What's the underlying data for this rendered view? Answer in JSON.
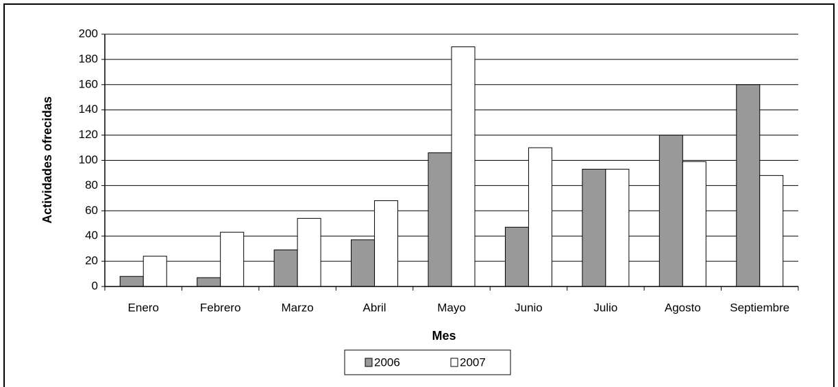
{
  "chart_data": {
    "type": "bar",
    "y_label": "Actividades ofrecidas",
    "x_label": "Mes",
    "categories": [
      "Enero",
      "Febrero",
      "Marzo",
      "Abril",
      "Mayo",
      "Junio",
      "Julio",
      "Agosto",
      "Septiembre"
    ],
    "series": [
      {
        "name": "2006",
        "color": "#999999",
        "values": [
          8,
          7,
          29,
          37,
          106,
          47,
          93,
          120,
          160
        ]
      },
      {
        "name": "2007",
        "color": "#ffffff",
        "values": [
          24,
          43,
          54,
          68,
          190,
          110,
          93,
          99,
          88
        ]
      }
    ],
    "ylim": [
      0,
      200
    ],
    "yticks": [
      0,
      20,
      40,
      60,
      80,
      100,
      120,
      140,
      160,
      180,
      200
    ],
    "grid": true,
    "legend": "bottom"
  }
}
